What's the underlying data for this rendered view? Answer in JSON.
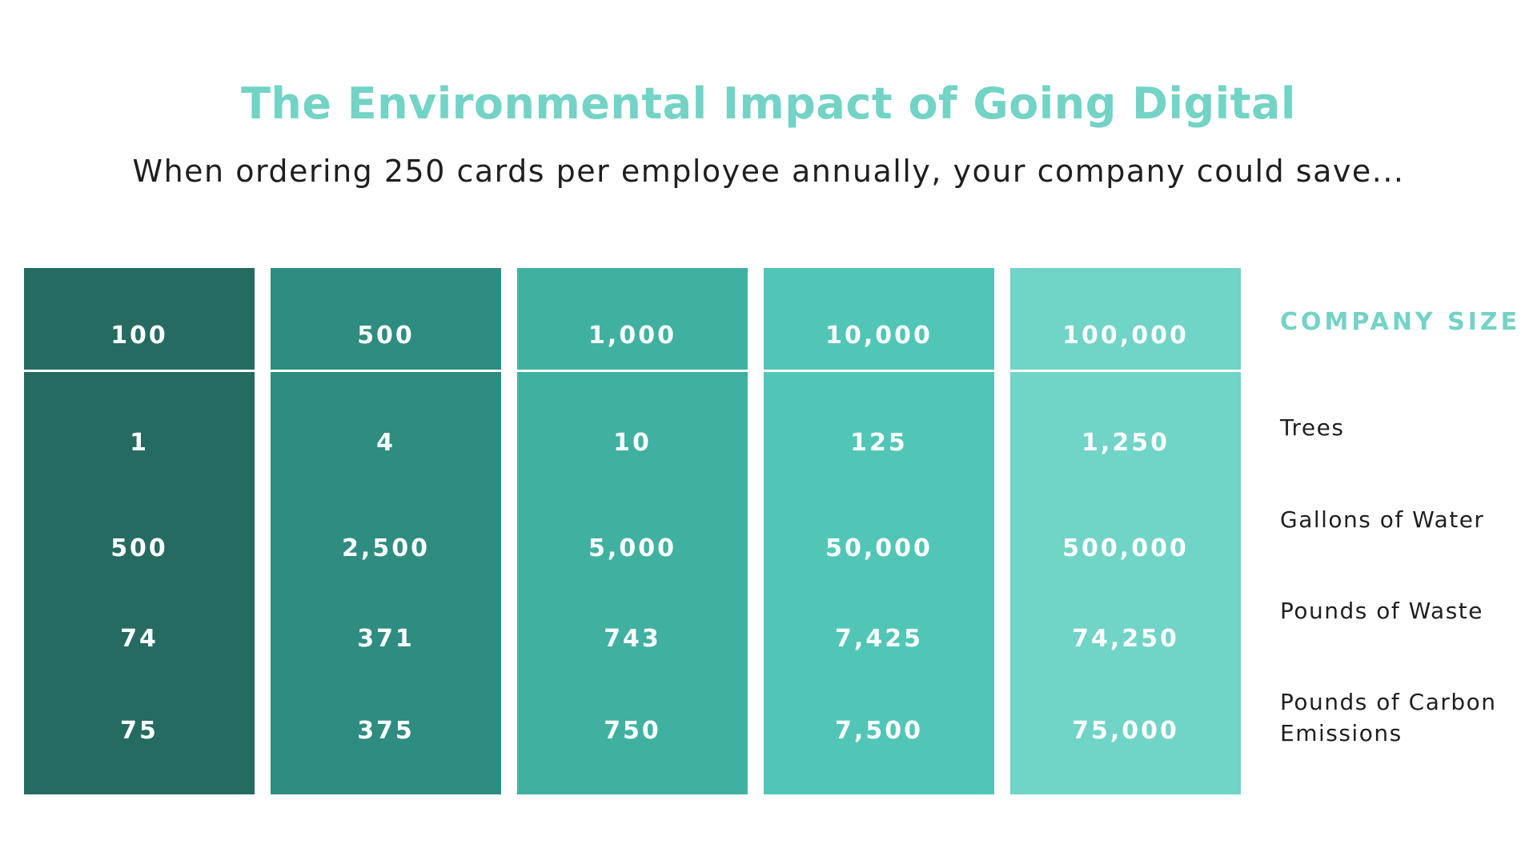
{
  "title": "The Environmental Impact of Going Digital",
  "subtitle": "When ordering 250 cards per employee annually, your company could save...",
  "colors": {
    "title": "#72d3c6",
    "columns": [
      "#256b62",
      "#2e8c80",
      "#40b1a1",
      "#51c6b6",
      "#70d4c6"
    ]
  },
  "row_labels": {
    "header": "COMPANY SIZE",
    "trees": "Trees",
    "water": "Gallons of Water",
    "waste": "Pounds of Waste",
    "carbon": "Pounds of Carbon Emissions"
  },
  "columns": [
    {
      "company_size": "100",
      "trees": "1",
      "water": "500",
      "waste": "74",
      "carbon": "75"
    },
    {
      "company_size": "500",
      "trees": "4",
      "water": "2,500",
      "waste": "371",
      "carbon": "375"
    },
    {
      "company_size": "1,000",
      "trees": "10",
      "water": "5,000",
      "waste": "743",
      "carbon": "750"
    },
    {
      "company_size": "10,000",
      "trees": "125",
      "water": "50,000",
      "waste": "7,425",
      "carbon": "7,500"
    },
    {
      "company_size": "100,000",
      "trees": "1,250",
      "water": "500,000",
      "waste": "74,250",
      "carbon": "75,000"
    }
  ]
}
